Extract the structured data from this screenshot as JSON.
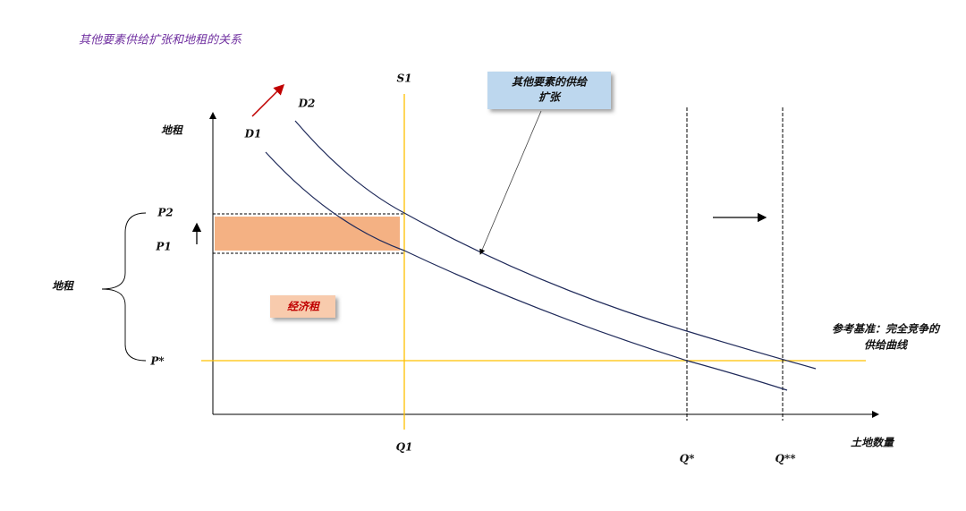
{
  "title": "其他要素供给扩张和地租的关系",
  "labels": {
    "s1": "S1",
    "d2": "D2",
    "d1": "D1",
    "y_axis": "地租",
    "p2": "P2",
    "p1": "P1",
    "brace": "地租",
    "economic_rent": "经济租",
    "p_star": "P*",
    "q1": "Q1",
    "q_star": "Q*",
    "q_star_star": "Q**",
    "x_axis": "土地数量"
  },
  "callout": {
    "lines": [
      "其他要素的供给",
      "扩张"
    ]
  },
  "reference": {
    "lines": [
      "参考基准：完全竞争的",
      "供给曲线"
    ]
  }
}
